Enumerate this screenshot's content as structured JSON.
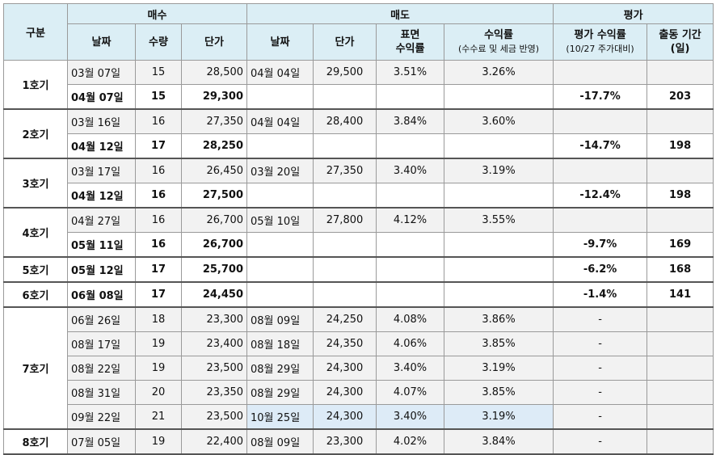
{
  "headers": {
    "group": "구분",
    "buy": "매수",
    "sell": "매도",
    "eval": "평가",
    "buy_date": "날짜",
    "buy_qty": "수량",
    "buy_price": "단가",
    "sell_date": "날짜",
    "sell_price": "단가",
    "surface_rate_1": "표면",
    "surface_rate_2": "수익률",
    "rate_1": "수익률",
    "rate_2": "(수수료 및 세금 반영)",
    "eval_rate_1": "평가 수익률",
    "eval_rate_2": "(10/27 주가대비)",
    "period_1": "출동 기간",
    "period_2": "(일)"
  },
  "groups": [
    {
      "label": "1호기",
      "rows": [
        {
          "buy_date": "03월 07일",
          "qty": "15",
          "price": "28,500",
          "sell_date": "04월 04일",
          "sell_price": "29,500",
          "surface": "3.51%",
          "rate": "3.26%",
          "eval": "",
          "period": "",
          "bold": false,
          "shade": true
        },
        {
          "buy_date": "04월 07일",
          "qty": "15",
          "price": "29,300",
          "sell_date": "",
          "sell_price": "",
          "surface": "",
          "rate": "",
          "eval": "-17.7%",
          "period": "203",
          "bold": true,
          "shade": false
        }
      ]
    },
    {
      "label": "2호기",
      "rows": [
        {
          "buy_date": "03월 16일",
          "qty": "16",
          "price": "27,350",
          "sell_date": "04월 04일",
          "sell_price": "28,400",
          "surface": "3.84%",
          "rate": "3.60%",
          "eval": "",
          "period": "",
          "bold": false,
          "shade": true
        },
        {
          "buy_date": "04월 12일",
          "qty": "17",
          "price": "28,250",
          "sell_date": "",
          "sell_price": "",
          "surface": "",
          "rate": "",
          "eval": "-14.7%",
          "period": "198",
          "bold": true,
          "shade": false
        }
      ]
    },
    {
      "label": "3호기",
      "rows": [
        {
          "buy_date": "03월 17일",
          "qty": "16",
          "price": "26,450",
          "sell_date": "03월 20일",
          "sell_price": "27,350",
          "surface": "3.40%",
          "rate": "3.19%",
          "eval": "",
          "period": "",
          "bold": false,
          "shade": true
        },
        {
          "buy_date": "04월 12일",
          "qty": "16",
          "price": "27,500",
          "sell_date": "",
          "sell_price": "",
          "surface": "",
          "rate": "",
          "eval": "-12.4%",
          "period": "198",
          "bold": true,
          "shade": false
        }
      ]
    },
    {
      "label": "4호기",
      "rows": [
        {
          "buy_date": "04월 27일",
          "qty": "16",
          "price": "26,700",
          "sell_date": "05월 10일",
          "sell_price": "27,800",
          "surface": "4.12%",
          "rate": "3.55%",
          "eval": "",
          "period": "",
          "bold": false,
          "shade": true
        },
        {
          "buy_date": "05월 11일",
          "qty": "16",
          "price": "26,700",
          "sell_date": "",
          "sell_price": "",
          "surface": "",
          "rate": "",
          "eval": "-9.7%",
          "period": "169",
          "bold": true,
          "shade": false
        }
      ]
    },
    {
      "label": "5호기",
      "rows": [
        {
          "buy_date": "05월 12일",
          "qty": "17",
          "price": "25,700",
          "sell_date": "",
          "sell_price": "",
          "surface": "",
          "rate": "",
          "eval": "-6.2%",
          "period": "168",
          "bold": true,
          "shade": false
        }
      ]
    },
    {
      "label": "6호기",
      "rows": [
        {
          "buy_date": "06월 08일",
          "qty": "17",
          "price": "24,450",
          "sell_date": "",
          "sell_price": "",
          "surface": "",
          "rate": "",
          "eval": "-1.4%",
          "period": "141",
          "bold": true,
          "shade": false
        }
      ]
    },
    {
      "label": "7호기",
      "rows": [
        {
          "buy_date": "06월 26일",
          "qty": "18",
          "price": "23,300",
          "sell_date": "08월 09일",
          "sell_price": "24,250",
          "surface": "4.08%",
          "rate": "3.86%",
          "eval": "-",
          "period": "",
          "bold": false,
          "shade": true
        },
        {
          "buy_date": "08월 17일",
          "qty": "19",
          "price": "23,400",
          "sell_date": "08월 18일",
          "sell_price": "24,350",
          "surface": "4.06%",
          "rate": "3.85%",
          "eval": "-",
          "period": "",
          "bold": false,
          "shade": true
        },
        {
          "buy_date": "08월 22일",
          "qty": "19",
          "price": "23,500",
          "sell_date": "08월 29일",
          "sell_price": "24,300",
          "surface": "3.40%",
          "rate": "3.19%",
          "eval": "-",
          "period": "",
          "bold": false,
          "shade": true
        },
        {
          "buy_date": "08월 31일",
          "qty": "20",
          "price": "23,350",
          "sell_date": "08월 29일",
          "sell_price": "24,300",
          "surface": "4.07%",
          "rate": "3.85%",
          "eval": "-",
          "period": "",
          "bold": false,
          "shade": true
        },
        {
          "buy_date": "09월 22일",
          "qty": "21",
          "price": "23,500",
          "sell_date": "10월 25일",
          "sell_price": "24,300",
          "surface": "3.40%",
          "rate": "3.19%",
          "eval": "-",
          "period": "",
          "bold": false,
          "shade": true,
          "highlight": true
        }
      ]
    },
    {
      "label": "8호기",
      "rows": [
        {
          "buy_date": "07월 05일",
          "qty": "19",
          "price": "22,400",
          "sell_date": "08월 09일",
          "sell_price": "23,300",
          "surface": "4.02%",
          "rate": "3.84%",
          "eval": "-",
          "period": "",
          "bold": false,
          "shade": true
        }
      ]
    }
  ],
  "colors": {
    "header_bg": "#dbeef5",
    "shade_bg": "#f2f2f2",
    "highlight_bg": "#ddebf7"
  }
}
